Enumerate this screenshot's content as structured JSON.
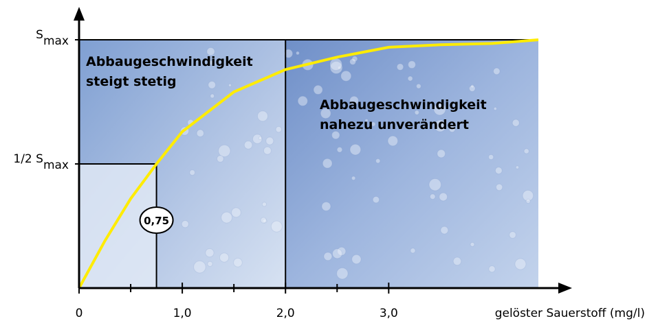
{
  "chart_data": {
    "type": "line",
    "x_label": "gelöster Sauerstoff (mg/l)",
    "x": [
      0,
      0.25,
      0.5,
      0.75,
      1,
      1.5,
      2,
      2.5,
      3,
      3.5,
      4,
      4.45
    ],
    "series": [
      {
        "color": "#ffec00",
        "values": [
          0,
          0.19,
          0.36,
          0.5,
          0.63,
          0.79,
          0.88,
          0.93,
          0.97,
          0.98,
          0.985,
          1
        ]
      }
    ],
    "xlim": [
      0,
      4.45
    ],
    "ylim": [
      0,
      1
    ],
    "xticks": [
      0,
      {
        "value": 1,
        "label": "1,0"
      },
      {
        "value": 2,
        "label": "2,0"
      },
      {
        "value": 3,
        "label": "3,0"
      }
    ],
    "minor_xticks": [
      0.5,
      1.5,
      2.5
    ],
    "yticks": [
      {
        "value": 0.5,
        "label": "1/2 S",
        "sub": "max"
      },
      {
        "value": 1,
        "label": "S",
        "sub": "max"
      }
    ],
    "half_saturation": {
      "x": 0.75,
      "y": 0.5,
      "label": "0,75"
    },
    "divider_x": 2,
    "annotations": [
      {
        "lines": [
          "Abbaugeschwindigkeit",
          "steigt stetig"
        ]
      },
      {
        "lines": [
          "Abbaugeschwindigkeit",
          "nahezu unverändert"
        ]
      }
    ]
  }
}
